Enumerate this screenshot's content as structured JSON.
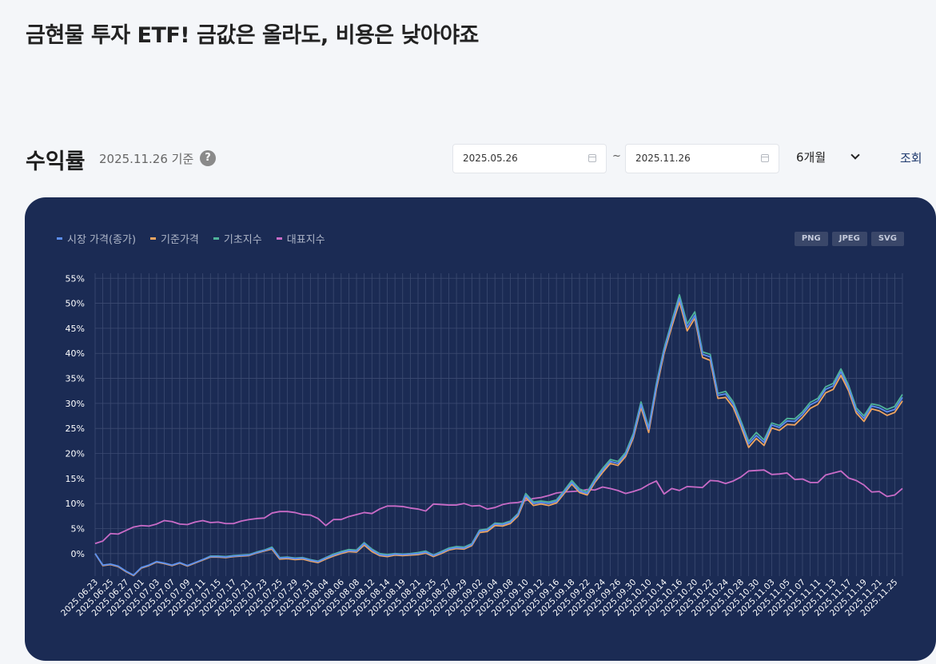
{
  "page": {
    "title": "금현물 투자 ETF! 금값은 올라도, 비용은 낮아야죠"
  },
  "section": {
    "title": "수익률",
    "basis": "2025.11.26 기준",
    "help_icon": "question-icon",
    "help_label": "?"
  },
  "controls": {
    "start_date": "2025.05.26",
    "end_date": "2025.11.26",
    "separator": "~",
    "period": "6개월",
    "search_label": "조회"
  },
  "exports": [
    "PNG",
    "JPEG",
    "SVG"
  ],
  "chart_data": {
    "type": "line",
    "ylim": [
      -4.5,
      56
    ],
    "yticks": [
      0,
      5,
      10,
      15,
      20,
      25,
      30,
      35,
      40,
      45,
      50,
      55
    ],
    "ytick_labels": [
      "0%",
      "5%",
      "10%",
      "15%",
      "20%",
      "25%",
      "30%",
      "35%",
      "40%",
      "45%",
      "50%",
      "55%"
    ],
    "legend_position": "top-left",
    "grid": true,
    "x": [
      "2025.06.23",
      "2025.06.24",
      "2025.06.25",
      "2025.06.26",
      "2025.06.27",
      "2025.06.30",
      "2025.07.01",
      "2025.07.02",
      "2025.07.03",
      "2025.07.04",
      "2025.07.07",
      "2025.07.08",
      "2025.07.09",
      "2025.07.10",
      "2025.07.11",
      "2025.07.14",
      "2025.07.15",
      "2025.07.16",
      "2025.07.17",
      "2025.07.18",
      "2025.07.21",
      "2025.07.22",
      "2025.07.23",
      "2025.07.24",
      "2025.07.25",
      "2025.07.28",
      "2025.07.29",
      "2025.07.30",
      "2025.07.31",
      "2025.08.01",
      "2025.08.04",
      "2025.08.05",
      "2025.08.06",
      "2025.08.07",
      "2025.08.08",
      "2025.08.11",
      "2025.08.12",
      "2025.08.13",
      "2025.08.14",
      "2025.08.18",
      "2025.08.19",
      "2025.08.20",
      "2025.08.21",
      "2025.08.22",
      "2025.08.25",
      "2025.08.26",
      "2025.08.27",
      "2025.08.28",
      "2025.08.29",
      "2025.09.01",
      "2025.09.02",
      "2025.09.03",
      "2025.09.04",
      "2025.09.05",
      "2025.09.08",
      "2025.09.09",
      "2025.09.10",
      "2025.09.11",
      "2025.09.12",
      "2025.09.15",
      "2025.09.16",
      "2025.09.17",
      "2025.09.18",
      "2025.09.19",
      "2025.09.22",
      "2025.09.23",
      "2025.09.24",
      "2025.09.25",
      "2025.09.26",
      "2025.09.29",
      "2025.09.30",
      "2025.10.01",
      "2025.10.10",
      "2025.10.13",
      "2025.10.14",
      "2025.10.15",
      "2025.10.16",
      "2025.10.17",
      "2025.10.20",
      "2025.10.21",
      "2025.10.22",
      "2025.10.23",
      "2025.10.24",
      "2025.10.27",
      "2025.10.28",
      "2025.10.29",
      "2025.10.30",
      "2025.10.31",
      "2025.11.03",
      "2025.11.04",
      "2025.11.05",
      "2025.11.06",
      "2025.11.07",
      "2025.11.10",
      "2025.11.11",
      "2025.11.12",
      "2025.11.13",
      "2025.11.14",
      "2025.11.17",
      "2025.11.18",
      "2025.11.19",
      "2025.11.20",
      "2025.11.21",
      "2025.11.24",
      "2025.11.25",
      "2025.11.26"
    ],
    "xtick_labels": [
      "2025.06.23",
      "2025.06.25",
      "2025.06.27",
      "2025.07.01",
      "2025.07.03",
      "2025.07.07",
      "2025.07.09",
      "2025.07.11",
      "2025.07.15",
      "2025.07.17",
      "2025.07.21",
      "2025.07.23",
      "2025.07.25",
      "2025.07.29",
      "2025.07.31",
      "2025.08.04",
      "2025.08.06",
      "2025.08.08",
      "2025.08.12",
      "2025.08.14",
      "2025.08.19",
      "2025.08.21",
      "2025.08.25",
      "2025.08.27",
      "2025.08.29",
      "2025.09.02",
      "2025.09.04",
      "2025.09.08",
      "2025.09.10",
      "2025.09.12",
      "2025.09.16",
      "2025.09.18",
      "2025.09.22",
      "2025.09.24",
      "2025.09.26",
      "2025.09.30",
      "2025.10.10",
      "2025.10.14",
      "2025.10.16",
      "2025.10.20",
      "2025.10.22",
      "2025.10.24",
      "2025.10.28",
      "2025.10.30",
      "2025.11.03",
      "2025.11.05",
      "2025.11.07",
      "2025.11.11",
      "2025.11.13",
      "2025.11.17",
      "2025.11.19",
      "2025.11.21",
      "2025.11.25"
    ],
    "series": [
      {
        "name": "시장 가격(종가)",
        "color": "#5b8def",
        "values": [
          0,
          -2.3,
          -2.1,
          -2.5,
          -3.5,
          -4.3,
          -2.8,
          -2.3,
          -1.6,
          -1.9,
          -2.3,
          -1.8,
          -2.4,
          -1.8,
          -1.2,
          -0.6,
          -0.6,
          -0.7,
          -0.5,
          -0.4,
          -0.3,
          0.2,
          0.6,
          1.1,
          -0.9,
          -0.8,
          -1,
          -0.9,
          -1.3,
          -1.6,
          -0.9,
          -0.3,
          0.2,
          0.6,
          0.5,
          2,
          0.7,
          -0.2,
          -0.4,
          -0.1,
          -0.2,
          -0.1,
          0,
          0.3,
          -0.4,
          0.2,
          0.9,
          1.2,
          1.1,
          1.8,
          4.5,
          4.7,
          5.9,
          5.8,
          6.3,
          7.8,
          11.6,
          10,
          10.2,
          10,
          10.4,
          12.3,
          14.2,
          12.5,
          12,
          14.5,
          16.6,
          18.4,
          18,
          19.8,
          23.5,
          29.8,
          24.8,
          33.5,
          40.5,
          45.9,
          51,
          45.2,
          47.6,
          39.8,
          39.3,
          31.6,
          31.9,
          29.8,
          26,
          21.9,
          23.6,
          22.2,
          25.7,
          25.2,
          26.5,
          26.4,
          27.8,
          29.7,
          30.5,
          32.8,
          33.5,
          36.3,
          33.1,
          28.6,
          27,
          29.5,
          29.1,
          28.3,
          28.8,
          31.2
        ]
      },
      {
        "name": "기준가격",
        "color": "#f0a560",
        "values": [
          0,
          -2.4,
          -2.2,
          -2.6,
          -3.6,
          -4.4,
          -2.9,
          -2.4,
          -1.7,
          -2,
          -2.4,
          -1.9,
          -2.5,
          -1.9,
          -1.3,
          -0.7,
          -0.7,
          -0.8,
          -0.6,
          -0.5,
          -0.4,
          0.1,
          0.5,
          0.9,
          -1.1,
          -1,
          -1.2,
          -1.1,
          -1.5,
          -1.8,
          -1.1,
          -0.5,
          0,
          0.4,
          0.3,
          1.7,
          0.4,
          -0.4,
          -0.6,
          -0.3,
          -0.4,
          -0.3,
          -0.2,
          0.1,
          -0.6,
          0,
          0.7,
          1,
          0.9,
          1.6,
          4.2,
          4.4,
          5.6,
          5.5,
          6,
          7.5,
          11.2,
          9.6,
          9.9,
          9.6,
          10.1,
          12,
          13.9,
          12.2,
          11.7,
          14.2,
          16.2,
          18,
          17.6,
          19.4,
          23.1,
          29.2,
          24.2,
          32.9,
          40,
          45.3,
          50.3,
          44.5,
          47,
          39.2,
          38.6,
          31,
          31.2,
          29.2,
          25.4,
          21.2,
          23,
          21.6,
          25.1,
          24.6,
          25.8,
          25.7,
          27.2,
          29,
          29.8,
          32.1,
          32.8,
          35.6,
          32.5,
          28.1,
          26.4,
          28.9,
          28.5,
          27.6,
          28.2,
          30.5
        ]
      },
      {
        "name": "기초지수",
        "color": "#4fb39a",
        "values": [
          0,
          -2.3,
          -2.1,
          -2.5,
          -3.5,
          -4.3,
          -2.8,
          -2.3,
          -1.6,
          -1.9,
          -2.3,
          -1.8,
          -2.4,
          -1.8,
          -1.2,
          -0.5,
          -0.5,
          -0.6,
          -0.4,
          -0.3,
          -0.2,
          0.3,
          0.7,
          1.3,
          -0.8,
          -0.7,
          -0.9,
          -0.8,
          -1.2,
          -1.5,
          -0.8,
          -0.1,
          0.4,
          0.8,
          0.7,
          2.2,
          0.9,
          0,
          -0.2,
          0,
          -0.1,
          0,
          0.2,
          0.5,
          -0.3,
          0.4,
          1.1,
          1.4,
          1.3,
          2,
          4.7,
          4.9,
          6.1,
          6,
          6.5,
          8,
          12,
          10.3,
          10.5,
          10.3,
          10.7,
          12.6,
          14.6,
          12.9,
          12.3,
          14.9,
          17,
          18.8,
          18.4,
          20.2,
          24,
          30.3,
          25.2,
          34,
          41,
          46.4,
          51.7,
          45.9,
          48.3,
          40.3,
          39.8,
          32,
          32.4,
          30.3,
          26.5,
          22.4,
          24.2,
          22.7,
          26.1,
          25.6,
          27,
          26.9,
          28.3,
          30.2,
          31,
          33.3,
          34,
          36.9,
          33.6,
          29.1,
          27.5,
          29.9,
          29.6,
          28.8,
          29.4,
          31.8
        ]
      },
      {
        "name": "대표지수",
        "color": "#c96bc7",
        "values": [
          2,
          2.5,
          4,
          3.9,
          4.6,
          5.3,
          5.6,
          5.5,
          5.9,
          6.6,
          6.4,
          5.9,
          5.8,
          6.3,
          6.6,
          6.2,
          6.3,
          6,
          6,
          6.5,
          6.8,
          7,
          7.1,
          8.1,
          8.4,
          8.4,
          8.2,
          7.8,
          7.7,
          7,
          5.6,
          6.8,
          6.8,
          7.4,
          7.8,
          8.2,
          8,
          8.9,
          9.5,
          9.5,
          9.4,
          9.1,
          8.9,
          8.5,
          9.9,
          9.8,
          9.7,
          9.7,
          10,
          9.5,
          9.6,
          8.9,
          9.2,
          9.8,
          10.1,
          10.2,
          10.6,
          11,
          11.2,
          11.6,
          12.1,
          12.3,
          12.4,
          12.5,
          12.8,
          12.7,
          13.3,
          13,
          12.6,
          12,
          12.4,
          12.9,
          13.8,
          14.5,
          11.9,
          13,
          12.6,
          13.4,
          13.3,
          13.2,
          14.6,
          14.5,
          14,
          14.5,
          15.3,
          16.5,
          16.6,
          16.7,
          15.8,
          15.9,
          16.1,
          14.8,
          14.9,
          14.2,
          14.2,
          15.7,
          16.1,
          16.5,
          15.1,
          14.6,
          13.7,
          12.3,
          12.4,
          11.4,
          11.7,
          13
        ]
      }
    ]
  }
}
